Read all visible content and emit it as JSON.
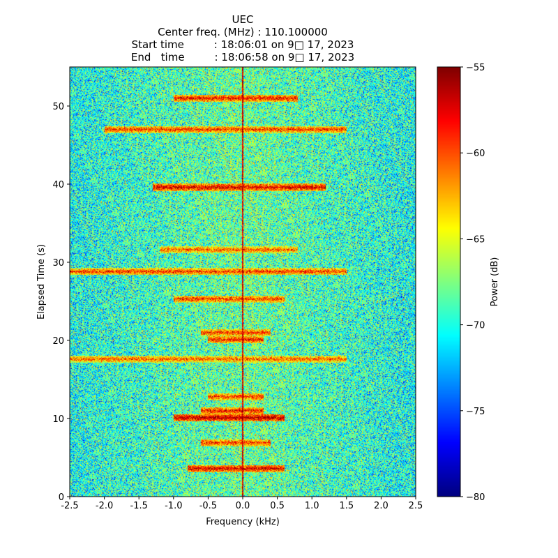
{
  "chart_data": {
    "type": "heatmap",
    "title_lines": [
      "UEC",
      "Center freq. (MHz) : 110.100000",
      "Start time         : 18:06:01 on 9□ 17, 2023",
      "End   time         : 18:06:58 on 9□ 17, 2023"
    ],
    "xlabel": "Frequency (kHz)",
    "ylabel": "Elapsed Time (s)",
    "xlim": [
      -2.5,
      2.5
    ],
    "ylim": [
      0,
      55
    ],
    "xticks": [
      -2.5,
      -2.0,
      -1.5,
      -1.0,
      -0.5,
      0.0,
      0.5,
      1.0,
      1.5,
      2.0,
      2.5
    ],
    "xtick_labels": [
      "-2.5",
      "-2.0",
      "-1.5",
      "-1.0",
      "-0.5",
      "0.0",
      "0.5",
      "1.0",
      "1.5",
      "2.0",
      "2.5"
    ],
    "yticks": [
      0,
      10,
      20,
      30,
      40,
      50
    ],
    "ytick_labels": [
      "0",
      "10",
      "20",
      "30",
      "40",
      "50"
    ],
    "colorbar": {
      "label": "Power (dB)",
      "range": [
        -80,
        -55
      ],
      "ticks": [
        -55,
        -60,
        -65,
        -70,
        -75,
        -80
      ],
      "tick_labels": [
        "−55",
        "−60",
        "−65",
        "−70",
        "−75",
        "−80"
      ],
      "colormap": "jet"
    },
    "value_range_db": [
      -80,
      -55
    ],
    "background_level_db": -68,
    "carrier_line": {
      "frequency_khz": 0.0,
      "level_db": -57
    },
    "strong_bands": [
      {
        "time_s": 3.6,
        "freq_range_khz": [
          -0.8,
          0.6
        ],
        "level_db": -57
      },
      {
        "time_s": 6.9,
        "freq_range_khz": [
          -0.6,
          0.4
        ],
        "level_db": -59
      },
      {
        "time_s": 10.1,
        "freq_range_khz": [
          -1.0,
          0.6
        ],
        "level_db": -56
      },
      {
        "time_s": 11.0,
        "freq_range_khz": [
          -0.6,
          0.3
        ],
        "level_db": -58
      },
      {
        "time_s": 12.8,
        "freq_range_khz": [
          -0.5,
          0.3
        ],
        "level_db": -59
      },
      {
        "time_s": 17.6,
        "freq_range_khz": [
          -2.5,
          1.5
        ],
        "level_db": -60
      },
      {
        "time_s": 20.1,
        "freq_range_khz": [
          -0.5,
          0.3
        ],
        "level_db": -58
      },
      {
        "time_s": 21.0,
        "freq_range_khz": [
          -0.6,
          0.4
        ],
        "level_db": -59
      },
      {
        "time_s": 25.3,
        "freq_range_khz": [
          -1.0,
          0.6
        ],
        "level_db": -59
      },
      {
        "time_s": 28.8,
        "freq_range_khz": [
          -2.5,
          1.5
        ],
        "level_db": -59
      },
      {
        "time_s": 31.6,
        "freq_range_khz": [
          -1.2,
          0.8
        ],
        "level_db": -60
      },
      {
        "time_s": 39.6,
        "freq_range_khz": [
          -1.3,
          1.2
        ],
        "level_db": -57
      },
      {
        "time_s": 47.0,
        "freq_range_khz": [
          -2.0,
          1.5
        ],
        "level_db": -59
      },
      {
        "time_s": 51.0,
        "freq_range_khz": [
          -1.0,
          0.8
        ],
        "level_db": -58
      }
    ]
  }
}
